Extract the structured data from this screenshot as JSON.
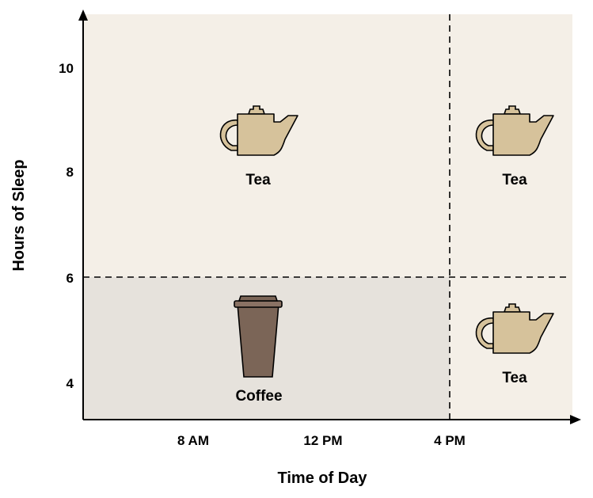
{
  "axes": {
    "xlabel": "Time of Day",
    "ylabel": "Hours of Sleep",
    "x_ticks": [
      "8 AM",
      "12 PM",
      "4 PM"
    ],
    "y_ticks": [
      "10",
      "8",
      "6",
      "4"
    ]
  },
  "regions": [
    {
      "name": "tea-region-top-left",
      "label": "Tea",
      "icon": "teapot-icon"
    },
    {
      "name": "tea-region-top-right",
      "label": "Tea",
      "icon": "teapot-icon"
    },
    {
      "name": "coffee-region-bottom-left",
      "label": "Coffee",
      "icon": "coffee-cup-icon"
    },
    {
      "name": "tea-region-bottom-right",
      "label": "Tea",
      "icon": "teapot-icon"
    }
  ],
  "colors": {
    "background_light": "#f4efe7",
    "background_coffee": "#e6e2dc",
    "teapot_fill": "#d6c29b",
    "cup_fill": "#7b6557",
    "divider": "#000000"
  }
}
